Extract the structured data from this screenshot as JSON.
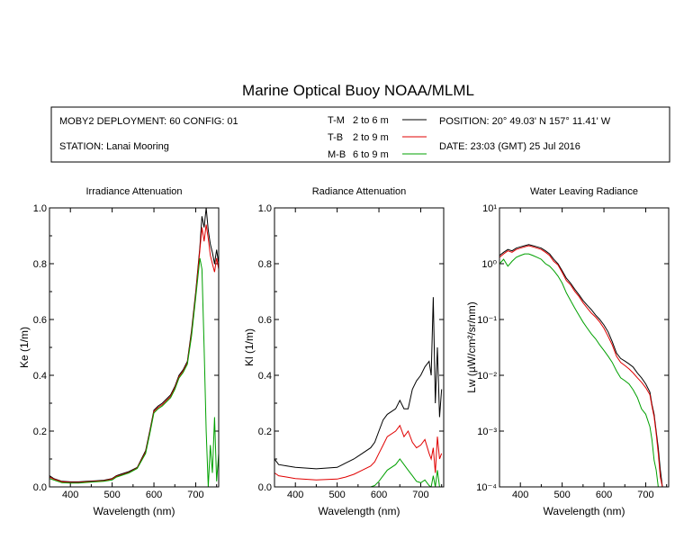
{
  "title": "Marine Optical Buoy NOAA/MLML",
  "info": {
    "deployment": "MOBY2 DEPLOYMENT: 60 CONFIG: 01",
    "station": "STATION: Lanai Mooring",
    "position": "POSITION: 20° 49.03' N   157° 11.41' W",
    "date": "DATE: 23:03 (GMT) 25 Jul 2016"
  },
  "legend": [
    {
      "key": "T-M",
      "range": "2 to 6  m",
      "color": "#000000"
    },
    {
      "key": "T-B",
      "range": "2 to 9  m",
      "color": "#e00000"
    },
    {
      "key": "M-B",
      "range": "6 to 9  m",
      "color": "#00a000"
    }
  ],
  "chart_data": [
    {
      "type": "line",
      "title": "Irradiance Attenuation",
      "xlabel": "Wavelength (nm)",
      "ylabel": "Ke  (1/m)",
      "xlim": [
        350,
        755
      ],
      "ylim": [
        0,
        1.0
      ],
      "xticks": [
        "400",
        "500",
        "600",
        "700"
      ],
      "yticks": [
        "0.0",
        "0.2",
        "0.4",
        "0.6",
        "0.8",
        "1.0"
      ],
      "yscale": "linear",
      "series": [
        {
          "name": "T-M",
          "color": "#000000",
          "x": [
            350,
            360,
            380,
            400,
            420,
            440,
            460,
            480,
            500,
            510,
            520,
            540,
            560,
            580,
            590,
            600,
            610,
            620,
            640,
            650,
            660,
            670,
            680,
            690,
            700,
            710,
            715,
            720,
            725,
            730,
            735,
            740,
            745,
            750,
            755
          ],
          "y": [
            0.04,
            0.03,
            0.02,
            0.018,
            0.018,
            0.02,
            0.022,
            0.024,
            0.03,
            0.04,
            0.045,
            0.055,
            0.07,
            0.13,
            0.2,
            0.275,
            0.29,
            0.3,
            0.33,
            0.36,
            0.4,
            0.42,
            0.45,
            0.56,
            0.7,
            0.86,
            0.97,
            0.93,
            1.0,
            0.92,
            0.87,
            0.84,
            0.8,
            0.85,
            0.8
          ]
        },
        {
          "name": "T-B",
          "color": "#e00000",
          "x": [
            350,
            360,
            380,
            400,
            420,
            440,
            460,
            480,
            500,
            510,
            520,
            540,
            560,
            580,
            590,
            600,
            610,
            620,
            640,
            650,
            660,
            670,
            680,
            690,
            700,
            710,
            715,
            720,
            725,
            730,
            735,
            740,
            745,
            750,
            755
          ],
          "y": [
            0.035,
            0.028,
            0.018,
            0.016,
            0.016,
            0.018,
            0.02,
            0.022,
            0.028,
            0.038,
            0.042,
            0.052,
            0.068,
            0.125,
            0.195,
            0.27,
            0.285,
            0.295,
            0.325,
            0.355,
            0.395,
            0.415,
            0.445,
            0.55,
            0.69,
            0.85,
            0.93,
            0.88,
            0.94,
            0.89,
            0.83,
            0.8,
            0.77,
            0.82,
            0.78
          ]
        },
        {
          "name": "M-B",
          "color": "#00a000",
          "x": [
            350,
            360,
            380,
            400,
            420,
            440,
            460,
            480,
            500,
            510,
            520,
            540,
            560,
            580,
            590,
            600,
            610,
            620,
            640,
            650,
            660,
            670,
            680,
            690,
            700,
            710,
            715,
            720,
            725,
            730,
            735,
            740,
            745,
            750,
            755
          ],
          "y": [
            0.03,
            0.025,
            0.015,
            0.014,
            0.014,
            0.016,
            0.018,
            0.02,
            0.025,
            0.035,
            0.04,
            0.05,
            0.066,
            0.12,
            0.19,
            0.265,
            0.28,
            0.29,
            0.32,
            0.35,
            0.39,
            0.41,
            0.44,
            0.54,
            0.68,
            0.82,
            0.78,
            0.5,
            0.2,
            0.0,
            0.15,
            0.05,
            0.25,
            0.02,
            0.12
          ]
        }
      ]
    },
    {
      "type": "line",
      "title": "Radiance Attenuation",
      "xlabel": "Wavelength (nm)",
      "ylabel": "Kl  (1/m)",
      "xlim": [
        350,
        755
      ],
      "ylim": [
        0,
        1.0
      ],
      "xticks": [
        "400",
        "500",
        "600",
        "700"
      ],
      "yticks": [
        "0.0",
        "0.2",
        "0.4",
        "0.6",
        "0.8",
        "1.0"
      ],
      "yscale": "linear",
      "series": [
        {
          "name": "T-M",
          "color": "#000000",
          "x": [
            350,
            355,
            360,
            380,
            400,
            450,
            500,
            520,
            540,
            560,
            580,
            590,
            600,
            610,
            620,
            640,
            650,
            660,
            670,
            680,
            690,
            700,
            710,
            720,
            725,
            730,
            735,
            740,
            745,
            750
          ],
          "y": [
            0.1,
            0.09,
            0.08,
            0.075,
            0.07,
            0.065,
            0.07,
            0.085,
            0.1,
            0.12,
            0.14,
            0.16,
            0.2,
            0.24,
            0.26,
            0.28,
            0.31,
            0.28,
            0.28,
            0.35,
            0.38,
            0.4,
            0.43,
            0.45,
            0.4,
            0.68,
            0.3,
            0.5,
            0.25,
            0.35
          ]
        },
        {
          "name": "T-B",
          "color": "#e00000",
          "x": [
            350,
            355,
            360,
            380,
            400,
            450,
            500,
            520,
            540,
            560,
            580,
            590,
            600,
            610,
            620,
            640,
            650,
            660,
            670,
            680,
            690,
            700,
            710,
            720,
            725,
            730,
            735,
            740,
            745,
            750
          ],
          "y": [
            0.05,
            0.045,
            0.04,
            0.035,
            0.03,
            0.025,
            0.028,
            0.035,
            0.045,
            0.06,
            0.075,
            0.09,
            0.12,
            0.15,
            0.18,
            0.2,
            0.22,
            0.18,
            0.2,
            0.16,
            0.14,
            0.15,
            0.17,
            0.12,
            0.1,
            0.14,
            0.05,
            0.18,
            0.1,
            0.12
          ]
        },
        {
          "name": "M-B",
          "color": "#00a000",
          "x": [
            350,
            360,
            380,
            400,
            450,
            500,
            520,
            540,
            560,
            580,
            590,
            600,
            610,
            620,
            640,
            650,
            660,
            670,
            680,
            690,
            700,
            710,
            720,
            725,
            730,
            735,
            740,
            745
          ],
          "y": [
            0,
            0,
            0,
            0,
            0,
            0,
            0,
            0,
            0,
            0,
            0.005,
            0.02,
            0.04,
            0.06,
            0.08,
            0.1,
            0.08,
            0.06,
            0.04,
            0.02,
            0.015,
            0.025,
            0.005,
            0.0,
            0.04,
            0.0,
            0.06,
            0.0
          ]
        }
      ]
    },
    {
      "type": "line",
      "title": "Water Leaving Radiance",
      "xlabel": "Wavelength (nm)",
      "ylabel": "Lw  (µW/cm²/sr/nm)",
      "xlim": [
        350,
        755
      ],
      "ylim": [
        0.0001,
        10
      ],
      "xticks": [
        "400",
        "500",
        "600",
        "700"
      ],
      "yticks": [
        "10⁻⁴",
        "10⁻³",
        "10⁻²",
        "10⁻¹",
        "10⁰",
        "10¹"
      ],
      "yscale": "log",
      "series": [
        {
          "name": "T-M",
          "color": "#000000",
          "x": [
            350,
            360,
            370,
            380,
            390,
            400,
            410,
            420,
            430,
            440,
            450,
            460,
            470,
            480,
            490,
            500,
            510,
            520,
            530,
            540,
            550,
            560,
            570,
            580,
            590,
            600,
            610,
            620,
            630,
            640,
            650,
            660,
            670,
            680,
            690,
            700,
            710,
            715,
            720,
            725,
            730,
            735,
            740,
            745
          ],
          "y": [
            1.4,
            1.6,
            1.8,
            1.7,
            1.9,
            2.0,
            2.1,
            2.2,
            2.1,
            2.0,
            1.9,
            1.7,
            1.5,
            1.2,
            1.0,
            0.75,
            0.55,
            0.45,
            0.35,
            0.28,
            0.22,
            0.18,
            0.15,
            0.12,
            0.1,
            0.08,
            0.06,
            0.04,
            0.025,
            0.02,
            0.018,
            0.016,
            0.014,
            0.011,
            0.009,
            0.007,
            0.005,
            0.003,
            0.002,
            0.001,
            0.0005,
            0.0002,
            8e-05,
            0.0001
          ]
        },
        {
          "name": "T-B",
          "color": "#e00000",
          "x": [
            350,
            360,
            370,
            380,
            390,
            400,
            410,
            420,
            430,
            440,
            450,
            460,
            470,
            480,
            490,
            500,
            510,
            520,
            530,
            540,
            550,
            560,
            570,
            580,
            590,
            600,
            610,
            620,
            630,
            640,
            650,
            660,
            670,
            680,
            690,
            700,
            710,
            715,
            720,
            725,
            730,
            735,
            740,
            745
          ],
          "y": [
            1.3,
            1.5,
            1.7,
            1.6,
            1.8,
            1.9,
            2.0,
            2.1,
            2.0,
            1.9,
            1.8,
            1.6,
            1.4,
            1.1,
            0.95,
            0.7,
            0.5,
            0.42,
            0.32,
            0.26,
            0.2,
            0.16,
            0.13,
            0.11,
            0.09,
            0.07,
            0.05,
            0.035,
            0.022,
            0.017,
            0.015,
            0.013,
            0.011,
            0.009,
            0.0075,
            0.006,
            0.0045,
            0.0028,
            0.0018,
            0.0009,
            0.0004,
            0.00015,
            8e-05,
            0.0001
          ]
        },
        {
          "name": "M-B",
          "color": "#00a000",
          "x": [
            350,
            360,
            370,
            380,
            390,
            400,
            410,
            420,
            430,
            440,
            450,
            460,
            470,
            480,
            490,
            500,
            510,
            520,
            530,
            540,
            550,
            560,
            570,
            580,
            590,
            600,
            610,
            620,
            630,
            640,
            650,
            660,
            670,
            680,
            690,
            700,
            710,
            715,
            720,
            725,
            730,
            735
          ],
          "y": [
            1.0,
            1.2,
            0.9,
            1.1,
            1.3,
            1.4,
            1.5,
            1.5,
            1.4,
            1.3,
            1.2,
            1.0,
            0.9,
            0.75,
            0.6,
            0.45,
            0.3,
            0.22,
            0.16,
            0.12,
            0.09,
            0.07,
            0.055,
            0.045,
            0.035,
            0.028,
            0.022,
            0.017,
            0.012,
            0.009,
            0.008,
            0.007,
            0.0055,
            0.004,
            0.0025,
            0.002,
            0.0012,
            0.0007,
            0.0003,
            0.0002,
            0.0001,
            0.0001
          ]
        }
      ]
    }
  ]
}
